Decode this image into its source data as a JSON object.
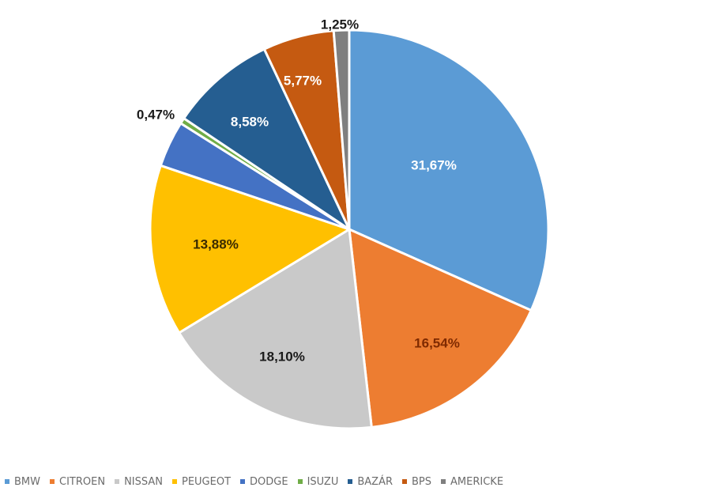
{
  "chart_data": {
    "type": "pie",
    "title": "",
    "start_angle_deg": 0,
    "direction": "clockwise",
    "legend_position": "bottom",
    "slices": [
      {
        "name": "BMW",
        "value": 31.67,
        "label": "31,67%",
        "color": "#5b9bd5",
        "label_color": "#ffffff"
      },
      {
        "name": "CITROEN",
        "value": 16.54,
        "label": "16,54%",
        "color": "#ed7d31",
        "label_color": "#7f2a00"
      },
      {
        "name": "NISSAN",
        "value": 18.1,
        "label": "18,10%",
        "color": "#c9c9c9",
        "label_color": "#1a1a1a"
      },
      {
        "name": "PEUGEOT",
        "value": 13.88,
        "label": "13,88%",
        "color": "#ffc000",
        "label_color": "#3a2b00"
      },
      {
        "name": "DODGE",
        "value": 3.74,
        "label": "",
        "color": "#4472c4",
        "label_color": "#ffffff"
      },
      {
        "name": "ISUZU",
        "value": 0.47,
        "label": "0,47%",
        "color": "#70ad47",
        "label_color": "#1a1a1a"
      },
      {
        "name": "BAZÁR",
        "value": 8.58,
        "label": "8,58%",
        "color": "#255e91",
        "label_color": "#ffffff"
      },
      {
        "name": "BPS",
        "value": 5.77,
        "label": "5,77%",
        "color": "#c55a11",
        "label_color": "#ffffff"
      },
      {
        "name": "AMERICKE",
        "value": 1.25,
        "label": "1,25%",
        "color": "#7f7f7f",
        "label_color": "#1a1a1a"
      }
    ]
  }
}
